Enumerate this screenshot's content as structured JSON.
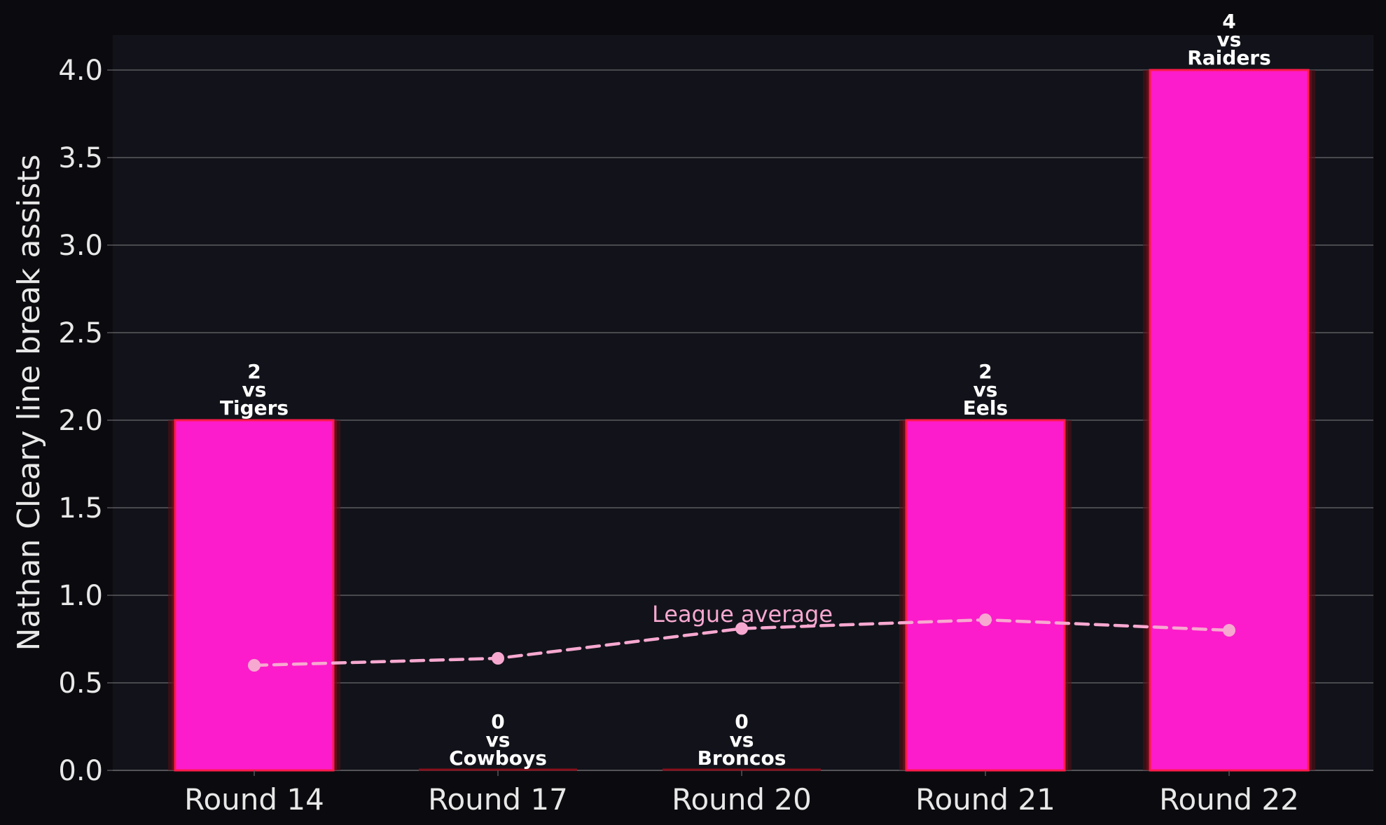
{
  "chart_data": {
    "type": "bar",
    "title": "",
    "xlabel": "",
    "ylabel": "Nathan Cleary line break assists",
    "categories": [
      "Round 14",
      "Round 17",
      "Round 20",
      "Round 21",
      "Round 22"
    ],
    "ylim": [
      0,
      4.2
    ],
    "yticks": [
      "0.0",
      "0.5",
      "1.0",
      "1.5",
      "2.0",
      "2.5",
      "3.0",
      "3.5",
      "4.0"
    ],
    "grid": "horizontal",
    "series": [
      {
        "values": [
          2,
          0,
          0,
          2,
          4
        ],
        "opponents": [
          "Tigers",
          "Cowboys",
          "Broncos",
          "Eels",
          "Raiders"
        ],
        "bar_labels": [
          [
            "2",
            "vs",
            "Tigers"
          ],
          [
            "0",
            "vs",
            "Cowboys"
          ],
          [
            "0",
            "vs",
            "Broncos"
          ],
          [
            "2",
            "vs",
            "Eels"
          ],
          [
            "4",
            "vs",
            "Raiders"
          ]
        ]
      },
      {
        "name": "League average",
        "type": "line",
        "values": [
          0.6,
          0.64,
          0.81,
          0.86,
          0.8
        ]
      }
    ],
    "annotation": "League average",
    "colors": {
      "figure_bg": "#0b0b0f",
      "axes_bg": "#12131a",
      "bar_fill": "#fc1ccb",
      "bar_edge": "#ff1a4a",
      "bar_glow": "#5a0d14",
      "line": "#f7a8d0",
      "grid": "#5a5a5f",
      "tick_text": "#e8e8e8",
      "label_text": "#ffffff"
    }
  }
}
